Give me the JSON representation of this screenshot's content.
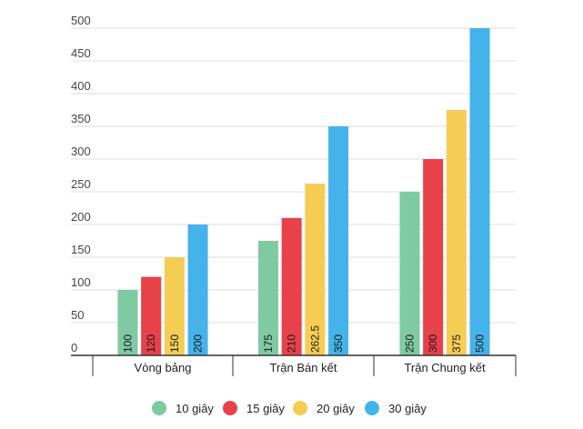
{
  "chart_data": {
    "type": "bar",
    "categories": [
      "Vòng bảng",
      "Trận Bán kết",
      "Trận Chung kết"
    ],
    "series": [
      {
        "name": "10 giây",
        "values": [
          100,
          175,
          250
        ],
        "labels": [
          "100",
          "175",
          "250"
        ],
        "color": "#7fc9a3"
      },
      {
        "name": "15 giây",
        "values": [
          120,
          210,
          300
        ],
        "labels": [
          "120",
          "210",
          "300"
        ],
        "color": "#e8414a"
      },
      {
        "name": "20 giây",
        "values": [
          150,
          262.5,
          375
        ],
        "labels": [
          "150",
          "262.5",
          "375"
        ],
        "color": "#f5cd55"
      },
      {
        "name": "30 giây",
        "values": [
          200,
          350,
          500
        ],
        "labels": [
          "200",
          "350",
          "500"
        ],
        "color": "#45b3ea"
      }
    ],
    "yticks": [
      "0",
      "50",
      "100",
      "150",
      "200",
      "250",
      "300",
      "350",
      "400",
      "450",
      "500"
    ],
    "ylim": [
      0,
      500
    ],
    "grid": true,
    "legend_position": "bottom",
    "colors": {
      "grid": "#dddddd",
      "axis": "#333333"
    }
  }
}
